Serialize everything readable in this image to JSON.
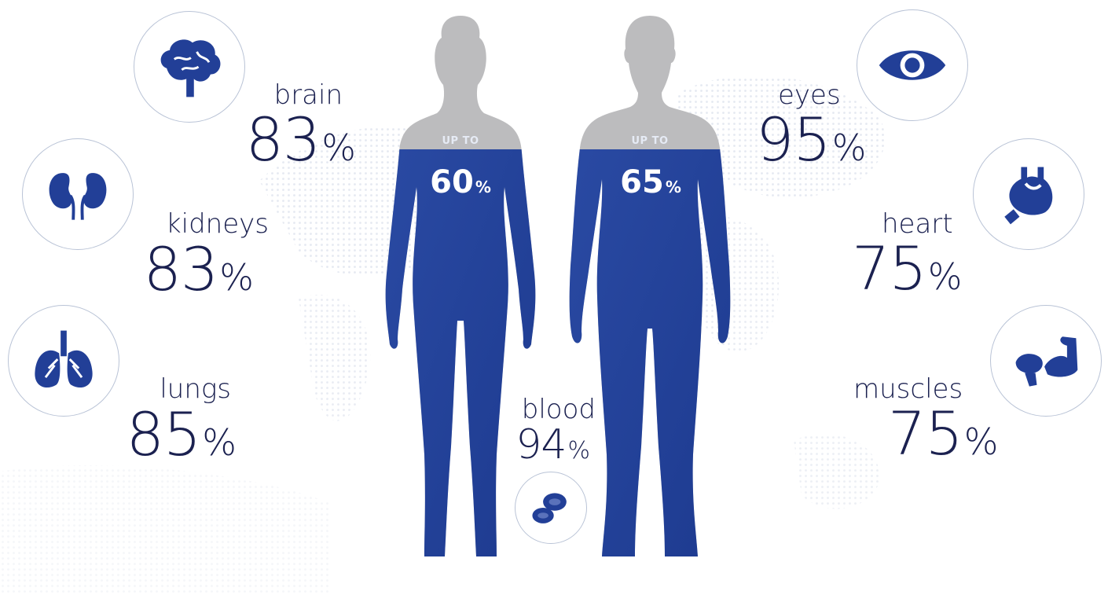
{
  "colors": {
    "accent": "#223f97",
    "text": "#1b2150",
    "silhouette_gray": "#bcbcbe"
  },
  "figures": [
    {
      "name": "woman",
      "upto": "UP TO",
      "value": "60",
      "unit": "%",
      "fill_fraction": 0.6
    },
    {
      "name": "man",
      "upto": "UP TO",
      "value": "65",
      "unit": "%",
      "fill_fraction": 0.65
    }
  ],
  "organs": {
    "brain": {
      "label": "brain",
      "value": "83",
      "unit": "%",
      "icon": "brain-icon"
    },
    "kidneys": {
      "label": "kidneys",
      "value": "83",
      "unit": "%",
      "icon": "kidneys-icon"
    },
    "lungs": {
      "label": "lungs",
      "value": "85",
      "unit": "%",
      "icon": "lungs-icon"
    },
    "eyes": {
      "label": "eyes",
      "value": "95",
      "unit": "%",
      "icon": "eye-icon"
    },
    "heart": {
      "label": "heart",
      "value": "75",
      "unit": "%",
      "icon": "heart-icon"
    },
    "muscles": {
      "label": "muscles",
      "value": "75",
      "unit": "%",
      "icon": "muscle-icon"
    },
    "blood": {
      "label": "blood",
      "value": "94",
      "unit": "%",
      "icon": "blood-cells-icon"
    }
  }
}
